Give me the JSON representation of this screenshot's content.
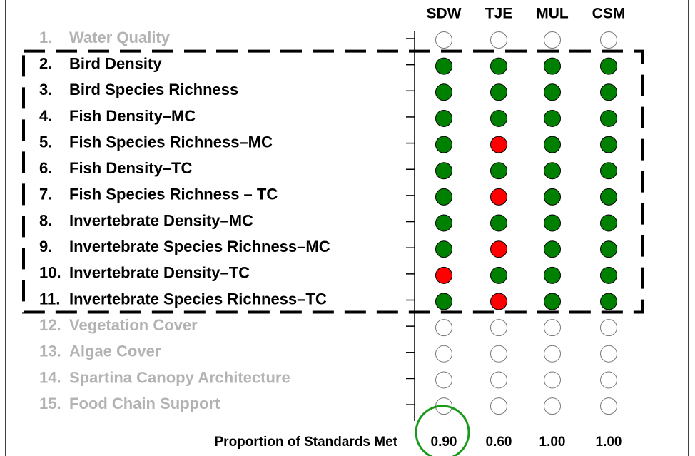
{
  "chart_data": {
    "type": "dot-matrix",
    "numbers": [
      "1.",
      "2.",
      "3.",
      "4.",
      "5.",
      "6.",
      "7.",
      "8.",
      "9.",
      "10.",
      "11.",
      "12.",
      "13.",
      "14.",
      "15."
    ],
    "categories": [
      "Water Quality",
      "Bird Density",
      "Bird Species Richness",
      "Fish Density–MC",
      "Fish Species Richness–MC",
      "Fish Density–TC",
      "Fish Species Richness – TC",
      "Invertebrate Density–MC",
      "Invertebrate Species Richness–MC",
      "Invertebrate Density–TC",
      "Invertebrate Species Richness–TC",
      "Vegetation Cover",
      "Algae Cover",
      "Spartina Canopy Architecture",
      "Food Chain Support"
    ],
    "series": [
      {
        "name": "SDW",
        "values": [
          null,
          1,
          1,
          1,
          1,
          1,
          1,
          1,
          1,
          0,
          1,
          null,
          null,
          null,
          null
        ]
      },
      {
        "name": "TJE",
        "values": [
          null,
          1,
          1,
          1,
          0,
          1,
          0,
          1,
          0,
          1,
          0,
          null,
          null,
          null,
          null
        ]
      },
      {
        "name": "MUL",
        "values": [
          null,
          1,
          1,
          1,
          1,
          1,
          1,
          1,
          1,
          1,
          1,
          null,
          null,
          null,
          null
        ]
      },
      {
        "name": "CSM",
        "values": [
          null,
          1,
          1,
          1,
          1,
          1,
          1,
          1,
          1,
          1,
          1,
          null,
          null,
          null,
          null
        ]
      }
    ],
    "colors": [
      "#ff0000",
      "#008000"
    ],
    "summary_label": "Proportion of Standards Met",
    "summary_values": [
      0.9,
      0.6,
      1,
      1
    ],
    "summary_value_labels": [
      "0.90",
      "0.60",
      "1.00",
      "1.00"
    ],
    "circled": 0
  }
}
